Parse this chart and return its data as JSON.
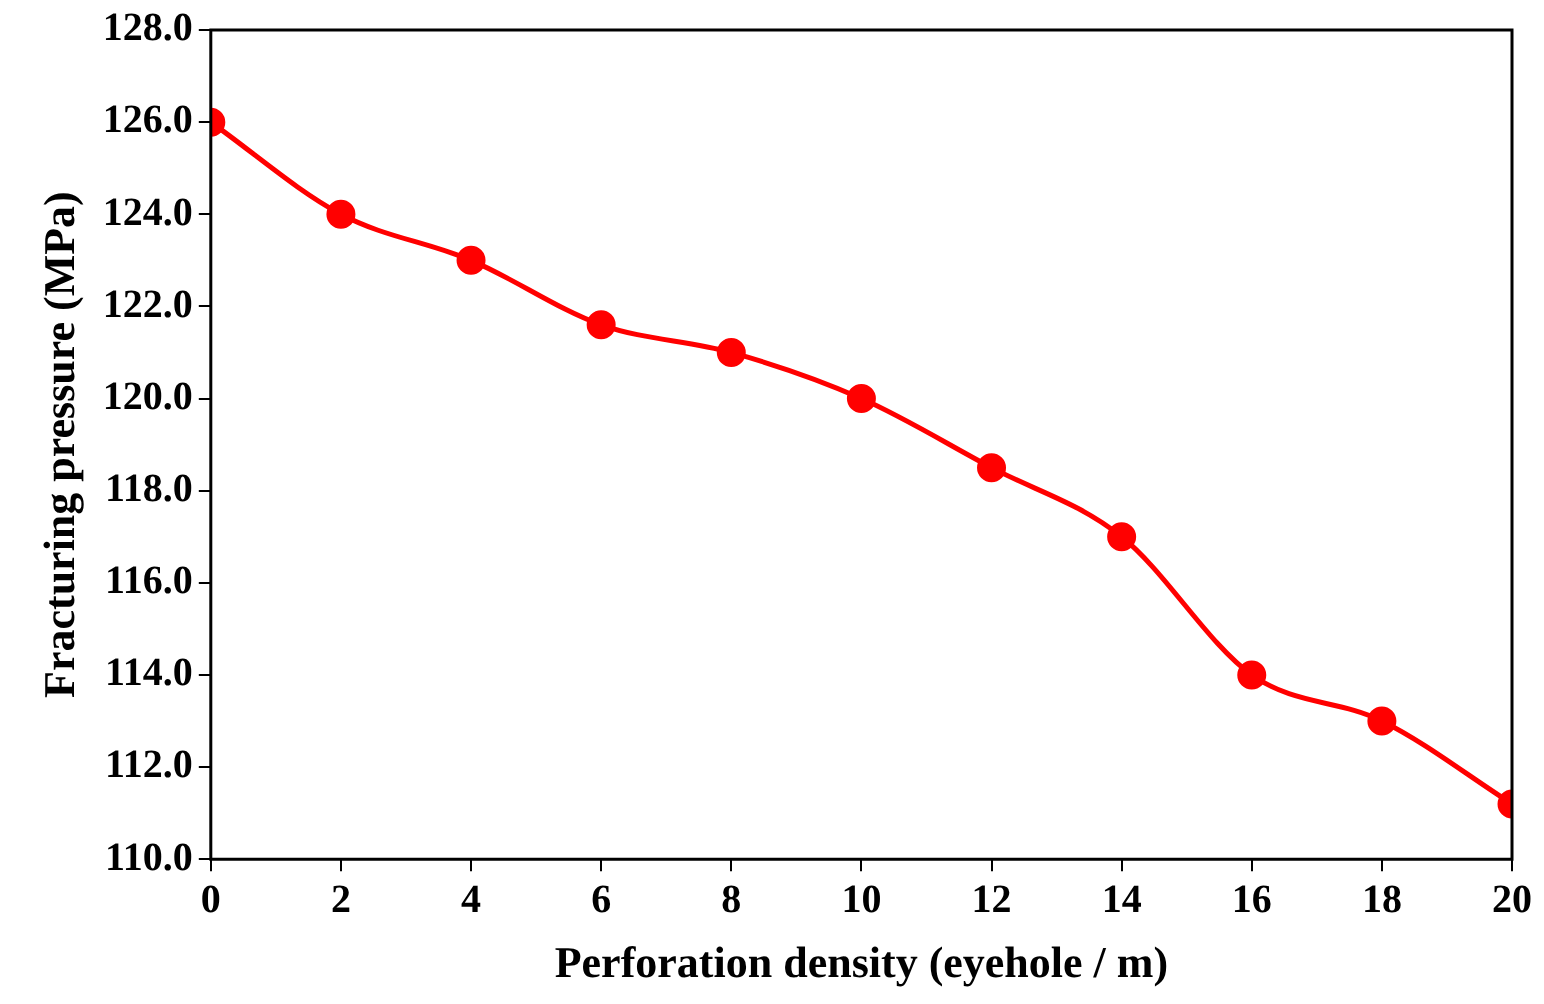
{
  "chart_data": {
    "type": "line",
    "xlabel": "Perforation density (eyehole / m)",
    "ylabel": "Fracturing pressure (MPa)",
    "x": [
      0,
      2,
      4,
      6,
      8,
      10,
      12,
      14,
      16,
      18,
      20
    ],
    "series": [
      {
        "color": "#ff0000",
        "values": [
          126,
          124,
          123,
          121.6,
          121,
          120,
          118.5,
          117,
          114,
          113,
          111.2
        ]
      }
    ],
    "xlim": [
      0,
      20
    ],
    "xticks": [
      0,
      2,
      4,
      6,
      8,
      10,
      12,
      14,
      16,
      18,
      20
    ],
    "ylim": [
      110,
      128
    ],
    "yticks": [
      {
        "value": 110,
        "label": "110.0"
      },
      {
        "value": 112,
        "label": "112.0"
      },
      {
        "value": 114,
        "label": "114.0"
      },
      {
        "value": 116,
        "label": "116.0"
      },
      {
        "value": 118,
        "label": "118.0"
      },
      {
        "value": 120,
        "label": "120.0"
      },
      {
        "value": 122,
        "label": "122.0"
      },
      {
        "value": 124,
        "label": "124.0"
      },
      {
        "value": 126,
        "label": "126.0"
      },
      {
        "value": 128,
        "label": "128.0"
      }
    ],
    "grid": false,
    "legend": false,
    "marker": "circle",
    "line_style": "solid"
  }
}
